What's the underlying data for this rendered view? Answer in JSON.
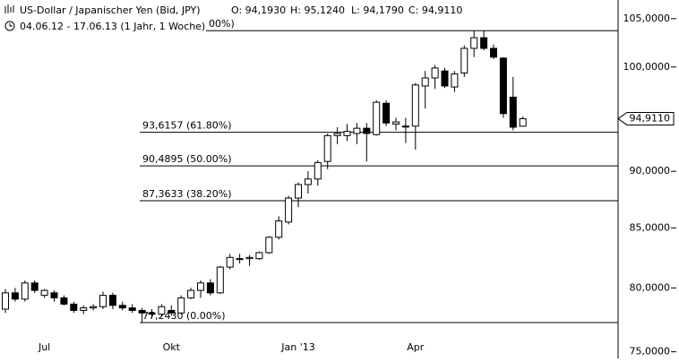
{
  "chart_data": {
    "type": "candlestick",
    "title": "US-Dollar / Japanischer Yen (Bid, JPY)",
    "ohlc_labels": [
      "O: 94,1930",
      "H: 95,1240",
      "L: 94,1790",
      "C: 94,9110"
    ],
    "subtitle": "04.06.12 - 17.06.13 (1 Jahr, 1 Woche)",
    "categories": [
      null,
      null,
      null,
      null,
      "Jul",
      null,
      null,
      null,
      null,
      null,
      null,
      null,
      null,
      null,
      null,
      null,
      null,
      "Okt",
      null,
      null,
      null,
      null,
      null,
      null,
      null,
      null,
      null,
      null,
      null,
      null,
      "Jan '13",
      null,
      null,
      null,
      null,
      null,
      null,
      null,
      null,
      null,
      null,
      null,
      "Apr",
      null,
      null,
      null,
      null,
      null,
      null,
      null,
      null,
      null,
      null,
      null
    ],
    "open": [
      78.3,
      79.6,
      79.1,
      80.4,
      79.4,
      79.6,
      79.2,
      78.7,
      78.2,
      78.4,
      78.5,
      79.4,
      78.6,
      78.4,
      78.2,
      78.0,
      77.9,
      78.2,
      78.0,
      79.2,
      79.8,
      80.4,
      79.6,
      81.7,
      82.4,
      82.4,
      82.4,
      82.9,
      84.2,
      85.5,
      87.6,
      88.8,
      89.3,
      90.9,
      93.3,
      93.3,
      93.5,
      94.0,
      93.4,
      96.4,
      94.4,
      94.2,
      94.2,
      98.1,
      98.9,
      99.6,
      98.0,
      99.4,
      101.9,
      103.0,
      101.9,
      100.9,
      97.0,
      94.193
    ],
    "high": [
      79.9,
      80.0,
      80.6,
      80.6,
      79.9,
      79.8,
      79.4,
      78.9,
      78.6,
      78.7,
      79.7,
      79.6,
      78.9,
      78.7,
      78.4,
      78.3,
      78.7,
      78.6,
      79.4,
      80.0,
      80.6,
      80.7,
      81.8,
      82.8,
      82.8,
      82.7,
      83.0,
      84.3,
      86.0,
      87.8,
      89.0,
      90.0,
      91.0,
      93.5,
      94.1,
      94.4,
      94.5,
      94.5,
      96.7,
      96.7,
      95.0,
      95.0,
      98.4,
      99.6,
      100.2,
      99.9,
      99.6,
      102.2,
      103.7,
      103.74,
      102.3,
      101.0,
      99.0,
      95.124
    ],
    "low": [
      78.0,
      78.9,
      78.9,
      79.6,
      79.2,
      78.9,
      78.6,
      78.0,
      77.9,
      78.2,
      78.3,
      78.3,
      78.2,
      78.0,
      77.243,
      77.6,
      77.7,
      77.8,
      77.9,
      79.1,
      79.2,
      79.4,
      79.5,
      81.5,
      82.0,
      81.8,
      82.3,
      82.8,
      84.0,
      85.3,
      86.8,
      88.0,
      88.7,
      90.2,
      92.5,
      92.8,
      92.5,
      90.9,
      93.3,
      94.2,
      93.8,
      92.6,
      92.0,
      95.9,
      97.8,
      97.9,
      97.5,
      99.0,
      101.0,
      101.7,
      100.8,
      95.0,
      93.8,
      94.179
    ],
    "close": [
      79.6,
      79.1,
      80.4,
      79.8,
      79.8,
      79.2,
      78.7,
      78.2,
      78.4,
      78.5,
      79.4,
      78.6,
      78.4,
      78.2,
      78.0,
      77.9,
      78.5,
      78.0,
      79.2,
      79.8,
      80.4,
      79.6,
      81.7,
      82.5,
      82.4,
      82.5,
      82.9,
      84.2,
      85.6,
      87.6,
      88.8,
      89.3,
      90.8,
      93.3,
      93.5,
      93.7,
      94.0,
      93.5,
      96.5,
      94.5,
      94.6,
      94.2,
      98.2,
      98.9,
      99.9,
      98.1,
      99.3,
      101.9,
      103.0,
      101.9,
      101.0,
      95.4,
      94.1,
      94.911
    ],
    "log_scale": true,
    "ylim": [
      74.5,
      107
    ],
    "yticks": [
      {
        "value": 75,
        "label": "75,0000"
      },
      {
        "value": 80,
        "label": "80,0000"
      },
      {
        "value": 85,
        "label": "85,0000"
      },
      {
        "value": 90,
        "label": "90,0000"
      },
      {
        "value": 100,
        "label": "100,0000"
      },
      {
        "value": 105,
        "label": "105,0000"
      }
    ],
    "levels": [
      {
        "value": 103.7365,
        "label": "00%)"
      },
      {
        "value": 93.6157,
        "label": "93,6157 (61.80%)"
      },
      {
        "value": 90.4895,
        "label": "90,4895 (50.00%)"
      },
      {
        "value": 87.3633,
        "label": "87,3633 (38.20%)"
      },
      {
        "value": 77.243,
        "label": "77,2430 (0.00%)"
      }
    ],
    "last_price": {
      "value": 94.911,
      "label": "94,9110"
    },
    "up_color": "#ffffff",
    "down_color": "#000000"
  }
}
